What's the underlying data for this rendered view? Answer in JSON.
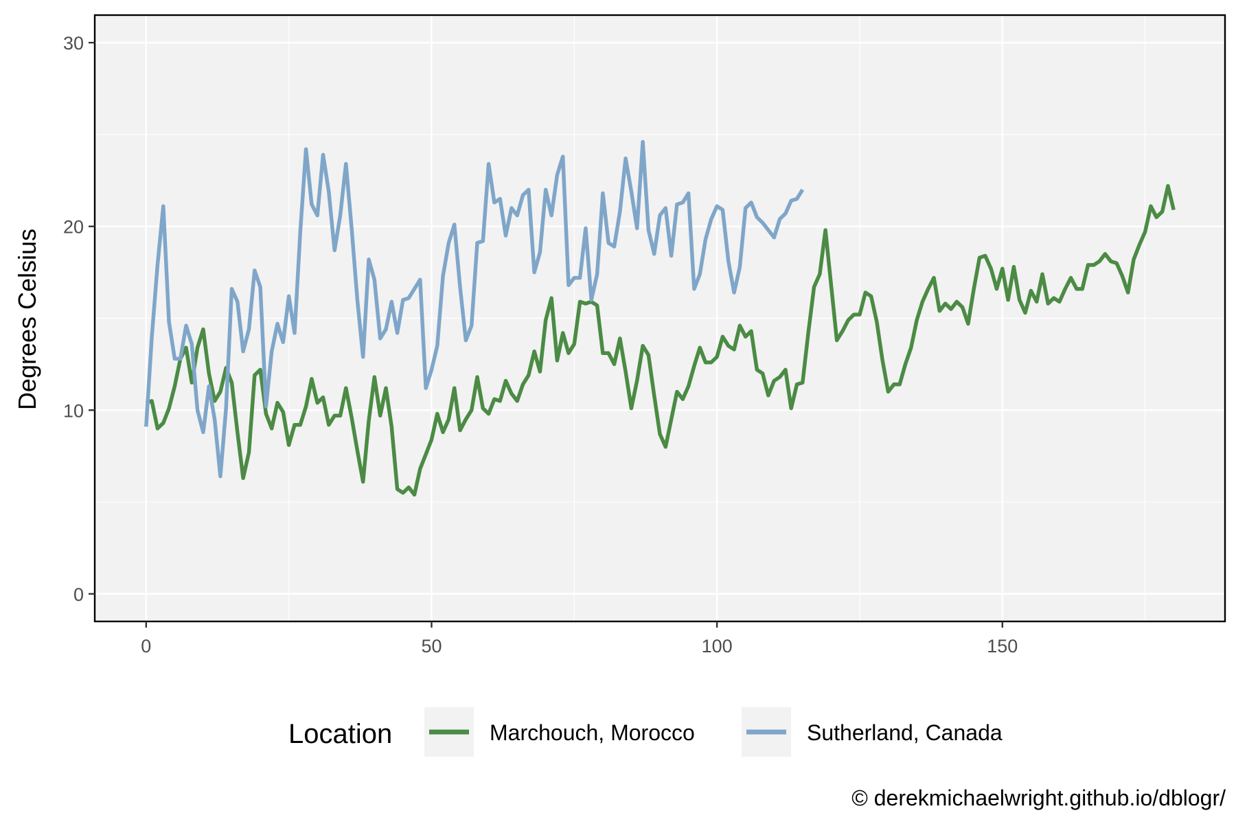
{
  "chart_data": {
    "type": "line",
    "title": "",
    "xlabel": "",
    "ylabel": "Degrees Celsius",
    "xlim": [
      -9,
      189
    ],
    "ylim": [
      -1.5,
      31.5
    ],
    "x_ticks": [
      0,
      50,
      100,
      150
    ],
    "y_ticks": [
      0,
      10,
      20,
      30
    ],
    "grid": true,
    "legend_position": "bottom",
    "legend_title": "Location",
    "credit": "© derekmichaelwright.github.io/dblogr/",
    "colors": {
      "panel_bg": "#f2f2f2",
      "grid": "#ffffff",
      "border": "#000000"
    },
    "series": [
      {
        "name": "Marchouch, Morocco",
        "color": "#4b8b44",
        "x": [
          0,
          1,
          2,
          3,
          4,
          5,
          6,
          7,
          8,
          9,
          10,
          11,
          12,
          13,
          14,
          15,
          16,
          17,
          18,
          19,
          20,
          21,
          22,
          23,
          24,
          25,
          26,
          27,
          28,
          29,
          30,
          31,
          32,
          33,
          34,
          35,
          36,
          37,
          38,
          39,
          40,
          41,
          42,
          43,
          44,
          45,
          46,
          47,
          48,
          49,
          50,
          51,
          52,
          53,
          54,
          55,
          56,
          57,
          58,
          59,
          60,
          61,
          62,
          63,
          64,
          65,
          66,
          67,
          68,
          69,
          70,
          71,
          72,
          73,
          74,
          75,
          76,
          77,
          78,
          79,
          80,
          81,
          82,
          83,
          84,
          85,
          86,
          87,
          88,
          89,
          90,
          91,
          92,
          93,
          94,
          95,
          96,
          97,
          98,
          99,
          100,
          101,
          102,
          103,
          104,
          105,
          106,
          107,
          108,
          109,
          110,
          111,
          112,
          113,
          114,
          115,
          116,
          117,
          118,
          119,
          120,
          121,
          122,
          123,
          124,
          125,
          126,
          127,
          128,
          129,
          130,
          131,
          132,
          133,
          134,
          135,
          136,
          137,
          138,
          139,
          140,
          141,
          142,
          143,
          144,
          145,
          146,
          147,
          148,
          149,
          150,
          151,
          152,
          153,
          154,
          155,
          156,
          157,
          158,
          159,
          160,
          161,
          162,
          163,
          164,
          165,
          166,
          167,
          168,
          169,
          170,
          171,
          172,
          173,
          174,
          175,
          176,
          177,
          178,
          179,
          180
        ],
        "values": [
          10.4,
          10.5,
          9.0,
          9.3,
          10.1,
          11.3,
          12.8,
          13.4,
          11.5,
          13.4,
          14.4,
          12.0,
          10.5,
          11.0,
          12.3,
          11.5,
          8.8,
          6.3,
          7.7,
          11.9,
          12.2,
          9.8,
          9.0,
          10.4,
          9.9,
          8.1,
          9.2,
          9.2,
          10.2,
          11.7,
          10.4,
          10.7,
          9.2,
          9.7,
          9.7,
          11.2,
          9.6,
          7.8,
          6.1,
          9.4,
          11.8,
          9.7,
          11.2,
          9.1,
          5.7,
          5.5,
          5.8,
          5.4,
          6.8,
          7.6,
          8.4,
          9.8,
          8.8,
          9.5,
          11.2,
          8.9,
          9.5,
          10.0,
          11.8,
          10.1,
          9.8,
          10.6,
          10.5,
          11.6,
          10.9,
          10.5,
          11.4,
          11.9,
          13.2,
          12.1,
          14.9,
          16.1,
          12.7,
          14.2,
          13.1,
          13.6,
          15.9,
          15.8,
          15.9,
          15.7,
          13.1,
          13.1,
          12.5,
          13.9,
          12.1,
          10.1,
          11.6,
          13.5,
          13.0,
          10.8,
          8.7,
          8.0,
          9.5,
          11.0,
          10.6,
          11.3,
          12.4,
          13.4,
          12.6,
          12.6,
          12.9,
          14.0,
          13.5,
          13.3,
          14.6,
          14.0,
          14.3,
          12.2,
          12.0,
          10.8,
          11.6,
          11.8,
          12.2,
          10.1,
          11.4,
          11.5,
          14.2,
          16.7,
          17.4,
          19.8,
          16.8,
          13.8,
          14.3,
          14.9,
          15.2,
          15.2,
          16.4,
          16.2,
          14.8,
          12.7,
          11.0,
          11.4,
          11.4,
          12.5,
          13.4,
          14.9,
          15.9,
          16.6,
          17.2,
          15.4,
          15.8,
          15.5,
          15.9,
          15.6,
          14.7,
          16.6,
          18.3,
          18.4,
          17.7,
          16.6,
          17.7,
          16.0,
          17.8,
          16.0,
          15.3,
          16.5,
          15.9,
          17.4,
          15.8,
          16.1,
          15.9,
          16.6,
          17.2,
          16.6,
          16.6,
          17.9,
          17.9,
          18.1,
          18.5,
          18.1,
          18.0,
          17.3,
          16.4,
          18.2,
          19.0,
          19.7,
          21.1,
          20.5,
          20.8,
          22.2,
          20.9
        ]
      },
      {
        "name": "Sutherland, Canada",
        "color": "#7fa6c9",
        "x": [
          0,
          1,
          2,
          3,
          4,
          5,
          6,
          7,
          8,
          9,
          10,
          11,
          12,
          13,
          14,
          15,
          16,
          17,
          18,
          19,
          20,
          21,
          22,
          23,
          24,
          25,
          26,
          27,
          28,
          29,
          30,
          31,
          32,
          33,
          34,
          35,
          36,
          37,
          38,
          39,
          40,
          41,
          42,
          43,
          44,
          45,
          46,
          47,
          48,
          49,
          50,
          51,
          52,
          53,
          54,
          55,
          56,
          57,
          58,
          59,
          60,
          61,
          62,
          63,
          64,
          65,
          66,
          67,
          68,
          69,
          70,
          71,
          72,
          73,
          74,
          75,
          76,
          77,
          78,
          79,
          80,
          81,
          82,
          83,
          84,
          85,
          86,
          87,
          88,
          89,
          90,
          91,
          92,
          93,
          94,
          95,
          96,
          97,
          98,
          99,
          100,
          101,
          102,
          103,
          104,
          105,
          106,
          107,
          108,
          109,
          110,
          111,
          112,
          113,
          114,
          115
        ],
        "values": [
          9.1,
          14.0,
          17.9,
          21.1,
          14.8,
          12.8,
          12.8,
          14.6,
          13.6,
          10.0,
          8.8,
          11.3,
          9.5,
          6.4,
          10.1,
          16.6,
          15.9,
          13.2,
          14.4,
          17.6,
          16.7,
          10.2,
          13.2,
          14.7,
          13.7,
          16.2,
          14.2,
          19.7,
          24.2,
          21.2,
          20.6,
          23.9,
          21.9,
          18.7,
          20.6,
          23.4,
          19.9,
          16.0,
          12.9,
          18.2,
          17.1,
          13.9,
          14.4,
          15.9,
          14.2,
          16.0,
          16.1,
          16.6,
          17.1,
          11.2,
          12.2,
          13.5,
          17.3,
          19.1,
          20.1,
          16.7,
          13.8,
          14.6,
          19.1,
          19.2,
          23.4,
          21.3,
          21.5,
          19.5,
          21.0,
          20.6,
          21.7,
          22.0,
          17.5,
          18.6,
          22.0,
          20.6,
          22.8,
          23.8,
          16.8,
          17.2,
          17.2,
          19.9,
          16.0,
          17.4,
          21.8,
          19.1,
          18.9,
          20.8,
          23.7,
          21.9,
          19.9,
          24.6,
          19.8,
          18.5,
          20.6,
          21.0,
          18.4,
          21.2,
          21.3,
          21.8,
          16.6,
          17.4,
          19.3,
          20.4,
          21.1,
          20.9,
          18.1,
          16.4,
          17.8,
          21.0,
          21.3,
          20.5,
          20.2,
          19.8,
          19.4,
          20.4,
          20.7,
          21.4,
          21.5,
          22.0
        ]
      }
    ]
  }
}
